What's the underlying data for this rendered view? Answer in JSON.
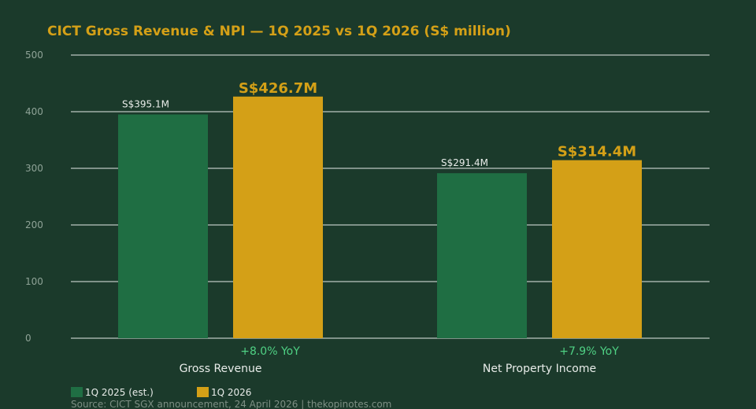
{
  "chart_data": {
    "type": "bar",
    "title": "CICT Gross Revenue & NPI — 1Q 2025 vs 1Q 2026 (S$ million)",
    "categories": [
      "Gross Revenue",
      "Net Property Income"
    ],
    "series": [
      {
        "name": "1Q 2025 (est.)",
        "values": [
          395.1,
          291.4
        ],
        "color": "#1f6e43",
        "data_labels": [
          "S$395.1M",
          "S$291.4M"
        ]
      },
      {
        "name": "1Q 2026",
        "values": [
          426.7,
          314.4
        ],
        "color": "#d4a017",
        "data_labels": [
          "S$426.7M",
          "S$314.4M"
        ]
      }
    ],
    "yoy_labels": [
      "+8.0% YoY",
      "+7.9% YoY"
    ],
    "yticks": [
      0,
      100,
      200,
      300,
      400,
      500
    ],
    "ylim": [
      0,
      500
    ],
    "grid": true,
    "legend_position": "bottom-left",
    "xlabel": "",
    "ylabel": "",
    "source": "Source: CICT SGX announcement, 24 April 2026 | thekopinotes.com"
  }
}
